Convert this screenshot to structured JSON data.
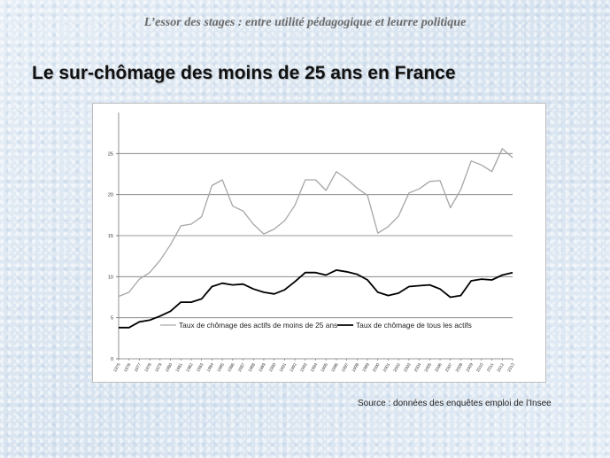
{
  "header": {
    "subtitle": "L’essor des stages : entre utilité pédagogique et leurre politique"
  },
  "slide": {
    "title": "Le sur-chômage des moins de 25 ans en France"
  },
  "source": "Source : données des enquêtes emploi de l'Insee",
  "chart_data": {
    "type": "line",
    "x": [
      "1975",
      "1976",
      "1977",
      "1978",
      "1979",
      "1980",
      "1981",
      "1982",
      "1983",
      "1984",
      "1985",
      "1986",
      "1987",
      "1988",
      "1989",
      "1990",
      "1991",
      "1992",
      "1993",
      "1994",
      "1995",
      "1996",
      "1997",
      "1998",
      "1999",
      "2000",
      "2001",
      "2002",
      "2003",
      "2004",
      "2005",
      "2006",
      "2007",
      "2008",
      "2009",
      "2010",
      "2011",
      "2012",
      "2013"
    ],
    "ylim": [
      0,
      30
    ],
    "yticks": [
      0,
      5,
      10,
      15,
      20,
      25
    ],
    "grid": true,
    "legend_position": "inside-bottom",
    "series": [
      {
        "name": "Taux de chômage des actifs de moins de 25 ans",
        "color": "#a6a6a6",
        "values": [
          7.6,
          8.1,
          9.7,
          10.5,
          12.0,
          13.9,
          16.2,
          16.4,
          17.3,
          21.1,
          21.8,
          18.6,
          18.0,
          16.4,
          15.2,
          15.8,
          16.8,
          18.7,
          21.8,
          21.8,
          20.5,
          22.8,
          21.9,
          20.8,
          19.9,
          15.3,
          16.1,
          17.4,
          20.2,
          20.7,
          21.6,
          21.7,
          18.4,
          20.6,
          24.1,
          23.6,
          22.8,
          25.6,
          24.5
        ]
      },
      {
        "name": "Taux de chômage de tous les actifs",
        "color": "#000000",
        "values": [
          3.8,
          3.8,
          4.5,
          4.7,
          5.2,
          5.8,
          6.9,
          6.9,
          7.3,
          8.8,
          9.2,
          9.0,
          9.1,
          8.5,
          8.1,
          7.9,
          8.4,
          9.4,
          10.5,
          10.5,
          10.2,
          10.8,
          10.6,
          10.3,
          9.6,
          8.1,
          7.7,
          8.0,
          8.8,
          8.9,
          9.0,
          8.5,
          7.5,
          7.7,
          9.5,
          9.7,
          9.6,
          10.2,
          10.5
        ]
      }
    ]
  }
}
